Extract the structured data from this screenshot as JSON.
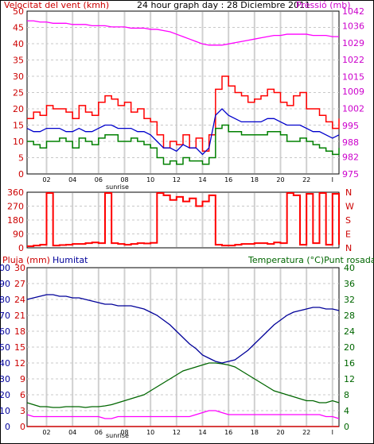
{
  "chart_data": [
    {
      "type": "line",
      "title": "24 hour graph day : 28 Diciembre 2011",
      "ylabel_left": "Velocitat del vent (kmh)",
      "ylabel_right": "Pressió (mb)",
      "ylim_left": [
        0,
        50
      ],
      "ylim_right": [
        975,
        1042
      ],
      "yticks_left": [
        0,
        5,
        10,
        15,
        20,
        25,
        30,
        35,
        40,
        45,
        50
      ],
      "yticks_right": [
        975,
        982,
        988,
        995,
        1002,
        1009,
        1015,
        1022,
        1029,
        1036,
        1042
      ],
      "xlim": [
        0,
        24
      ],
      "xticks": [
        "02",
        "04",
        "06",
        "08",
        "10",
        "12",
        "14",
        "16",
        "18",
        "20",
        "22",
        "I"
      ],
      "annotations": [
        "sunrise"
      ],
      "colors": {
        "gust": "#ff0000",
        "avg": "#0000cc",
        "speed": "#008000",
        "pressure": "#ff00ff"
      },
      "x": [
        0,
        0.5,
        1,
        1.5,
        2,
        2.5,
        3,
        3.5,
        4,
        4.5,
        5,
        5.5,
        6,
        6.5,
        7,
        7.5,
        8,
        8.5,
        9,
        9.5,
        10,
        10.5,
        11,
        11.5,
        12,
        12.5,
        13,
        13.5,
        14,
        14.5,
        15,
        15.5,
        16,
        16.5,
        17,
        17.5,
        18,
        18.5,
        19,
        19.5,
        20,
        20.5,
        21,
        21.5,
        22,
        22.5,
        23,
        23.5,
        24
      ],
      "series": [
        {
          "key": "gust",
          "axis": "left",
          "values": [
            17,
            19,
            18,
            21,
            20,
            20,
            19,
            17,
            21,
            19,
            18,
            22,
            24,
            23,
            21,
            22,
            19,
            20,
            17,
            16,
            12,
            8,
            10,
            9,
            12,
            8,
            11,
            7,
            12,
            26,
            30,
            27,
            25,
            24,
            22,
            23,
            24,
            26,
            25,
            22,
            21,
            24,
            25,
            20,
            20,
            18,
            16,
            14,
            17
          ]
        },
        {
          "key": "avg",
          "axis": "left",
          "values": [
            14,
            13,
            13,
            14,
            14,
            14,
            13,
            13,
            14,
            13,
            13,
            14,
            15,
            15,
            14,
            14,
            14,
            13,
            13,
            12,
            10,
            8,
            8,
            7,
            9,
            8,
            8,
            6,
            8,
            18,
            20,
            18,
            17,
            16,
            16,
            16,
            16,
            17,
            17,
            16,
            15,
            15,
            15,
            14,
            13,
            13,
            12,
            11,
            12
          ]
        },
        {
          "key": "speed",
          "axis": "left",
          "values": [
            10,
            9,
            8,
            10,
            10,
            11,
            10,
            8,
            11,
            10,
            9,
            11,
            12,
            12,
            10,
            10,
            11,
            10,
            9,
            8,
            5,
            3,
            4,
            3,
            5,
            4,
            4,
            3,
            5,
            14,
            15,
            13,
            13,
            12,
            12,
            12,
            12,
            13,
            13,
            12,
            10,
            10,
            11,
            10,
            9,
            8,
            7,
            6,
            8
          ]
        },
        {
          "key": "pressure",
          "axis": "right",
          "values": [
            1038,
            1038,
            1037.5,
            1037.5,
            1037,
            1037,
            1037,
            1036.5,
            1036.5,
            1036.5,
            1036,
            1036,
            1036,
            1035.5,
            1035.5,
            1035.5,
            1035,
            1035,
            1035,
            1034.5,
            1034.5,
            1034,
            1033.5,
            1032.5,
            1031.5,
            1030.5,
            1029.5,
            1028.5,
            1028,
            1028,
            1028,
            1028.5,
            1029,
            1029.5,
            1030,
            1030.5,
            1031,
            1031.5,
            1032,
            1032,
            1032.5,
            1032.5,
            1032.5,
            1032.5,
            1032,
            1032,
            1032,
            1031.5,
            1031.5
          ]
        }
      ]
    },
    {
      "type": "line",
      "ylim_left": [
        0,
        360
      ],
      "yticks_left": [
        0,
        90,
        180,
        270,
        360
      ],
      "ylabels_right": [
        "N",
        "E",
        "S",
        "W",
        "N"
      ],
      "xlim": [
        0,
        24
      ],
      "annotations": [
        "sunrise"
      ],
      "colors": {
        "direction": "#ff0000"
      },
      "x": [
        0,
        0.5,
        1,
        1.5,
        2,
        2.5,
        3,
        3.5,
        4,
        4.5,
        5,
        5.5,
        6,
        6.5,
        7,
        7.5,
        8,
        8.5,
        9,
        9.5,
        10,
        10.5,
        11,
        11.5,
        12,
        12.5,
        13,
        13.5,
        14,
        14.5,
        15,
        15.5,
        16,
        16.5,
        17,
        17.5,
        18,
        18.5,
        19,
        19.5,
        20,
        20.5,
        21,
        21.5,
        22,
        22.5,
        23,
        23.5,
        24
      ],
      "series": [
        {
          "key": "direction",
          "values": [
            10,
            15,
            20,
            355,
            15,
            18,
            20,
            25,
            25,
            30,
            35,
            30,
            355,
            30,
            25,
            20,
            25,
            30,
            28,
            32,
            355,
            340,
            310,
            330,
            300,
            320,
            270,
            300,
            340,
            20,
            15,
            15,
            20,
            25,
            25,
            30,
            30,
            25,
            35,
            30,
            355,
            340,
            20,
            350,
            30,
            355,
            20,
            350,
            20
          ]
        }
      ]
    },
    {
      "type": "line",
      "ylabel_left": "Pluja (mm)",
      "ylabel_left2": "Humitat",
      "ylabel_right": "Temperatura (°C)Punt rosada",
      "ylim_left": [
        0,
        30
      ],
      "ylim_left2": [
        0,
        100
      ],
      "ylim_right": [
        0,
        40
      ],
      "yticks_left": [
        0,
        3,
        6,
        9,
        12,
        15,
        18,
        21,
        24,
        27,
        30
      ],
      "yticks_left2": [
        0,
        10,
        20,
        30,
        40,
        50,
        60,
        70,
        80,
        90,
        100
      ],
      "yticks_right": [
        0,
        4,
        8,
        12,
        16,
        20,
        24,
        28,
        32,
        36,
        40
      ],
      "xlim": [
        0,
        24
      ],
      "xticks": [
        "02",
        "04",
        "06",
        "08",
        "10",
        "12",
        "14",
        "16",
        "18",
        "20",
        "22",
        "I"
      ],
      "annotations": [
        "sunrise"
      ],
      "colors": {
        "rain": "#cc0000",
        "humidity": "#000099",
        "temperature": "#006600",
        "dewpoint": "#ff00ff"
      },
      "x": [
        0,
        0.5,
        1,
        1.5,
        2,
        2.5,
        3,
        3.5,
        4,
        4.5,
        5,
        5.5,
        6,
        6.5,
        7,
        7.5,
        8,
        8.5,
        9,
        9.5,
        10,
        10.5,
        11,
        11.5,
        12,
        12.5,
        13,
        13.5,
        14,
        14.5,
        15,
        15.5,
        16,
        16.5,
        17,
        17.5,
        18,
        18.5,
        19,
        19.5,
        20,
        20.5,
        21,
        21.5,
        22,
        22.5,
        23,
        23.5,
        24
      ],
      "series": [
        {
          "key": "rain",
          "axis": "left",
          "values": [
            0,
            0,
            0,
            0,
            0,
            0,
            0,
            0,
            0,
            0,
            0,
            0,
            0,
            0,
            0,
            0,
            0,
            0,
            0,
            0,
            0,
            0,
            0,
            0,
            0,
            0,
            0,
            0,
            0,
            0,
            0,
            0,
            0,
            0,
            0,
            0,
            0,
            0,
            0,
            0,
            0,
            0,
            0,
            0,
            0,
            0,
            0,
            0,
            0
          ]
        },
        {
          "key": "humidity",
          "axis": "left2",
          "values": [
            80,
            81,
            82,
            83,
            83,
            82,
            82,
            81,
            81,
            80,
            79,
            78,
            77,
            77,
            76,
            76,
            76,
            75,
            74,
            72,
            70,
            67,
            64,
            60,
            56,
            52,
            49,
            45,
            43,
            41,
            40,
            41,
            42,
            45,
            48,
            52,
            56,
            60,
            64,
            67,
            70,
            72,
            73,
            74,
            75,
            75,
            74,
            74,
            73
          ]
        },
        {
          "key": "temperature",
          "axis": "right",
          "values": [
            6,
            5.5,
            5,
            5,
            4.8,
            4.8,
            5,
            5,
            5,
            4.8,
            5,
            5,
            5.2,
            5.5,
            6,
            6.5,
            7,
            7.5,
            8,
            9,
            10,
            11,
            12,
            13,
            14,
            14.5,
            15,
            15.5,
            16,
            16,
            15.8,
            15.5,
            15,
            14,
            13,
            12,
            11,
            10,
            9,
            8.5,
            8,
            7.5,
            7,
            6.5,
            6.5,
            6,
            6,
            6.5,
            6
          ]
        },
        {
          "key": "dewpoint",
          "axis": "right",
          "values": [
            3,
            2.5,
            2.5,
            2.5,
            2.5,
            2.5,
            2.5,
            2.5,
            2.5,
            2.5,
            2.5,
            2.5,
            2,
            2,
            2.5,
            2.5,
            2.5,
            2.5,
            2.5,
            2.5,
            2.5,
            2.5,
            2.5,
            2.5,
            2.5,
            2.5,
            3,
            3.5,
            4,
            4,
            3.5,
            3,
            3,
            3,
            3,
            3,
            3,
            3,
            3,
            3,
            3,
            3,
            3,
            3,
            3,
            3,
            2.5,
            2.5,
            2
          ]
        }
      ]
    }
  ]
}
